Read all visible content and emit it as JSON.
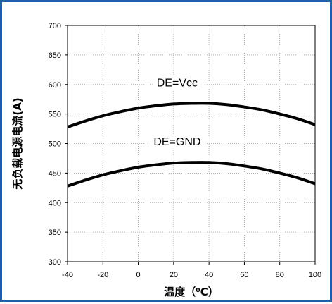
{
  "chart_data": {
    "type": "line",
    "xlabel": "温度（⁰C）",
    "ylabel": "无负载电源电流(A)",
    "xlim": [
      -40,
      100
    ],
    "ylim": [
      300,
      700
    ],
    "x_ticks": [
      -40,
      -20,
      0,
      20,
      40,
      60,
      80,
      100
    ],
    "y_ticks": [
      300,
      350,
      400,
      450,
      500,
      550,
      600,
      650,
      700
    ],
    "grid": true,
    "series": [
      {
        "name": "DE=Vcc",
        "x": [
          -40,
          -30,
          -20,
          -10,
          0,
          10,
          20,
          30,
          40,
          50,
          60,
          70,
          80,
          90,
          100
        ],
        "values": [
          528,
          538,
          547,
          554,
          560,
          564,
          567,
          568,
          568,
          566,
          562,
          557,
          550,
          542,
          532
        ]
      },
      {
        "name": "DE=GND",
        "x": [
          -40,
          -30,
          -20,
          -10,
          0,
          10,
          20,
          30,
          40,
          50,
          60,
          70,
          80,
          90,
          100
        ],
        "values": [
          428,
          438,
          447,
          454,
          460,
          464,
          467,
          468,
          468,
          466,
          462,
          457,
          450,
          442,
          432
        ]
      }
    ],
    "annotations": [
      {
        "text": "DE=Vcc",
        "x": 22,
        "y": 597
      },
      {
        "text": "DE=GND",
        "x": 22,
        "y": 497
      }
    ]
  }
}
